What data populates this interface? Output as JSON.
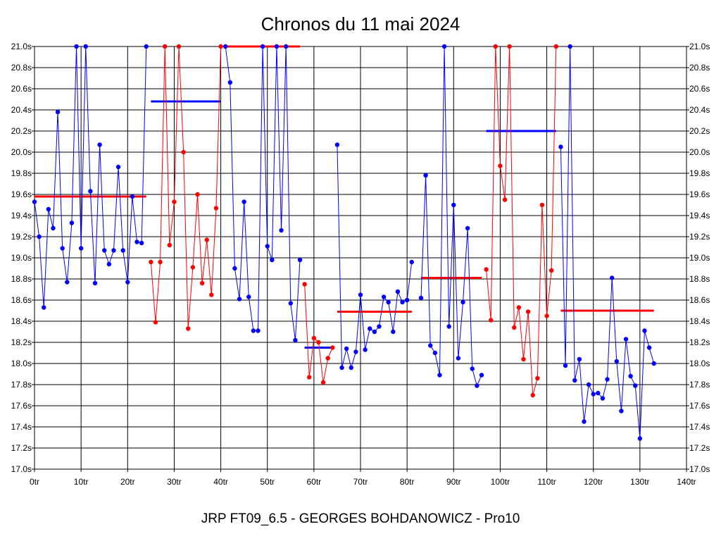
{
  "chart_data": {
    "type": "line",
    "title": "Chronos du 11 mai 2024",
    "footer": "JRP FT09_6.5 - GEORGES BOHDANOWICZ - Pro10",
    "xlim": [
      0,
      140
    ],
    "ylim": [
      17.0,
      21.0
    ],
    "x_ticks": [
      {
        "value": 0,
        "label": "0tr"
      },
      {
        "value": 10,
        "label": "10tr"
      },
      {
        "value": 20,
        "label": "20tr"
      },
      {
        "value": 30,
        "label": "30tr"
      },
      {
        "value": 40,
        "label": "40tr"
      },
      {
        "value": 50,
        "label": "50tr"
      },
      {
        "value": 60,
        "label": "60tr"
      },
      {
        "value": 70,
        "label": "70tr"
      },
      {
        "value": 80,
        "label": "80tr"
      },
      {
        "value": 90,
        "label": "90tr"
      },
      {
        "value": 100,
        "label": "100tr"
      },
      {
        "value": 110,
        "label": "110tr"
      },
      {
        "value": 120,
        "label": "120tr"
      },
      {
        "value": 130,
        "label": "130tr"
      },
      {
        "value": 140,
        "label": "140tr"
      }
    ],
    "y_ticks": [
      {
        "value": 17.0,
        "label": "17.0s"
      },
      {
        "value": 17.2,
        "label": "17.2s"
      },
      {
        "value": 17.4,
        "label": "17.4s"
      },
      {
        "value": 17.6,
        "label": "17.6s"
      },
      {
        "value": 17.8,
        "label": "17.8s"
      },
      {
        "value": 18.0,
        "label": "18.0s"
      },
      {
        "value": 18.2,
        "label": "18.2s"
      },
      {
        "value": 18.4,
        "label": "18.4s"
      },
      {
        "value": 18.6,
        "label": "18.6s"
      },
      {
        "value": 18.8,
        "label": "18.8s"
      },
      {
        "value": 19.0,
        "label": "19.0s"
      },
      {
        "value": 19.2,
        "label": "19.2s"
      },
      {
        "value": 19.4,
        "label": "19.4s"
      },
      {
        "value": 19.6,
        "label": "19.6s"
      },
      {
        "value": 19.8,
        "label": "19.8s"
      },
      {
        "value": 20.0,
        "label": "20.0s"
      },
      {
        "value": 20.2,
        "label": "20.2s"
      },
      {
        "value": 20.4,
        "label": "20.4s"
      },
      {
        "value": 20.6,
        "label": "20.6s"
      },
      {
        "value": 20.8,
        "label": "20.8s"
      },
      {
        "value": 21.0,
        "label": "21.0s"
      }
    ],
    "grid": true,
    "colors": {
      "blue": "#0000ff",
      "red": "#ff0000",
      "grid": "#000000"
    },
    "series": [
      {
        "color": "blue",
        "points": [
          [
            0,
            19.53
          ],
          [
            1,
            19.2
          ],
          [
            2,
            18.53
          ],
          [
            3,
            19.46
          ],
          [
            4,
            19.28
          ],
          [
            5,
            20.38
          ],
          [
            6,
            19.09
          ],
          [
            7,
            18.77
          ],
          [
            8,
            19.33
          ],
          [
            9,
            21.0
          ],
          [
            10,
            19.09
          ],
          [
            11,
            21.0
          ],
          [
            12,
            19.63
          ],
          [
            13,
            18.76
          ],
          [
            14,
            20.07
          ],
          [
            15,
            19.07
          ],
          [
            16,
            18.94
          ],
          [
            17,
            19.07
          ],
          [
            18,
            19.86
          ],
          [
            19,
            19.07
          ],
          [
            20,
            18.77
          ],
          [
            21,
            19.58
          ],
          [
            22,
            19.15
          ],
          [
            23,
            19.14
          ],
          [
            24,
            21.0
          ]
        ]
      },
      {
        "color": "red",
        "points": [
          [
            25,
            18.96
          ],
          [
            26,
            18.39
          ],
          [
            27,
            18.96
          ],
          [
            28,
            21.0
          ],
          [
            29,
            19.12
          ],
          [
            30,
            19.53
          ],
          [
            31,
            21.0
          ],
          [
            32,
            20.0
          ],
          [
            33,
            18.33
          ],
          [
            34,
            18.91
          ],
          [
            35,
            19.6
          ],
          [
            36,
            18.76
          ],
          [
            37,
            19.17
          ],
          [
            38,
            18.65
          ],
          [
            39,
            19.47
          ],
          [
            40,
            21.0
          ]
        ]
      },
      {
        "color": "blue",
        "points": [
          [
            41,
            21.0
          ],
          [
            42,
            20.66
          ],
          [
            43,
            18.9
          ],
          [
            44,
            18.61
          ],
          [
            45,
            19.53
          ],
          [
            46,
            18.63
          ],
          [
            47,
            18.31
          ],
          [
            48,
            18.31
          ],
          [
            49,
            21.0
          ],
          [
            50,
            19.11
          ],
          [
            51,
            18.98
          ],
          [
            52,
            21.0
          ],
          [
            53,
            19.26
          ],
          [
            54,
            21.0
          ],
          [
            55,
            18.57
          ],
          [
            56,
            18.22
          ],
          [
            57,
            18.98
          ]
        ]
      },
      {
        "color": "red",
        "points": [
          [
            58,
            18.75
          ],
          [
            59,
            17.87
          ],
          [
            60,
            18.24
          ],
          [
            61,
            18.2
          ],
          [
            62,
            17.82
          ],
          [
            63,
            18.05
          ],
          [
            64,
            18.15
          ]
        ]
      },
      {
        "color": "blue",
        "points": [
          [
            65,
            20.07
          ],
          [
            66,
            17.96
          ],
          [
            67,
            18.14
          ],
          [
            68,
            17.96
          ],
          [
            69,
            18.11
          ],
          [
            70,
            18.65
          ],
          [
            71,
            18.13
          ],
          [
            72,
            18.33
          ],
          [
            73,
            18.3
          ],
          [
            74,
            18.35
          ],
          [
            75,
            18.63
          ],
          [
            76,
            18.58
          ],
          [
            77,
            18.3
          ],
          [
            78,
            18.68
          ],
          [
            79,
            18.58
          ],
          [
            80,
            18.6
          ],
          [
            81,
            18.96
          ]
        ]
      },
      {
        "color": "blue",
        "points": [
          [
            83,
            18.62
          ],
          [
            84,
            19.78
          ],
          [
            85,
            18.17
          ],
          [
            86,
            18.1
          ],
          [
            87,
            17.89
          ],
          [
            88,
            21.0
          ],
          [
            89,
            18.35
          ],
          [
            90,
            19.5
          ],
          [
            91,
            18.05
          ],
          [
            92,
            18.58
          ],
          [
            93,
            19.28
          ],
          [
            94,
            17.95
          ],
          [
            95,
            17.79
          ],
          [
            96,
            17.89
          ]
        ]
      },
      {
        "color": "red",
        "points": [
          [
            97,
            18.89
          ],
          [
            98,
            18.41
          ],
          [
            99,
            21.0
          ],
          [
            100,
            19.87
          ],
          [
            101,
            19.55
          ],
          [
            102,
            21.0
          ],
          [
            103,
            18.34
          ],
          [
            104,
            18.53
          ],
          [
            105,
            18.04
          ],
          [
            106,
            18.49
          ],
          [
            107,
            17.7
          ],
          [
            108,
            17.86
          ],
          [
            109,
            19.5
          ],
          [
            110,
            18.45
          ],
          [
            111,
            18.88
          ],
          [
            112,
            21.0
          ]
        ]
      },
      {
        "color": "blue",
        "points": [
          [
            113,
            20.05
          ],
          [
            114,
            17.98
          ],
          [
            115,
            21.0
          ],
          [
            116,
            17.84
          ],
          [
            117,
            18.04
          ],
          [
            118,
            17.45
          ],
          [
            119,
            17.8
          ],
          [
            120,
            17.71
          ],
          [
            121,
            17.72
          ],
          [
            122,
            17.67
          ],
          [
            123,
            17.85
          ],
          [
            124,
            18.81
          ],
          [
            125,
            18.02
          ],
          [
            126,
            17.55
          ],
          [
            127,
            18.23
          ],
          [
            128,
            17.88
          ],
          [
            129,
            17.79
          ],
          [
            130,
            17.29
          ],
          [
            131,
            18.31
          ],
          [
            132,
            18.15
          ],
          [
            133,
            18.0
          ]
        ]
      }
    ],
    "averages": [
      {
        "color": "red",
        "x": [
          0,
          24
        ],
        "y": 19.58
      },
      {
        "color": "blue",
        "x": [
          25,
          40
        ],
        "y": 20.48
      },
      {
        "color": "red",
        "x": [
          41,
          57
        ],
        "y": 21.0
      },
      {
        "color": "blue",
        "x": [
          58,
          64
        ],
        "y": 18.15
      },
      {
        "color": "red",
        "x": [
          65,
          81
        ],
        "y": 18.49
      },
      {
        "color": "red",
        "x": [
          83,
          96
        ],
        "y": 18.81
      },
      {
        "color": "blue",
        "x": [
          97,
          112
        ],
        "y": 20.2
      },
      {
        "color": "red",
        "x": [
          113,
          133
        ],
        "y": 18.5
      }
    ]
  }
}
